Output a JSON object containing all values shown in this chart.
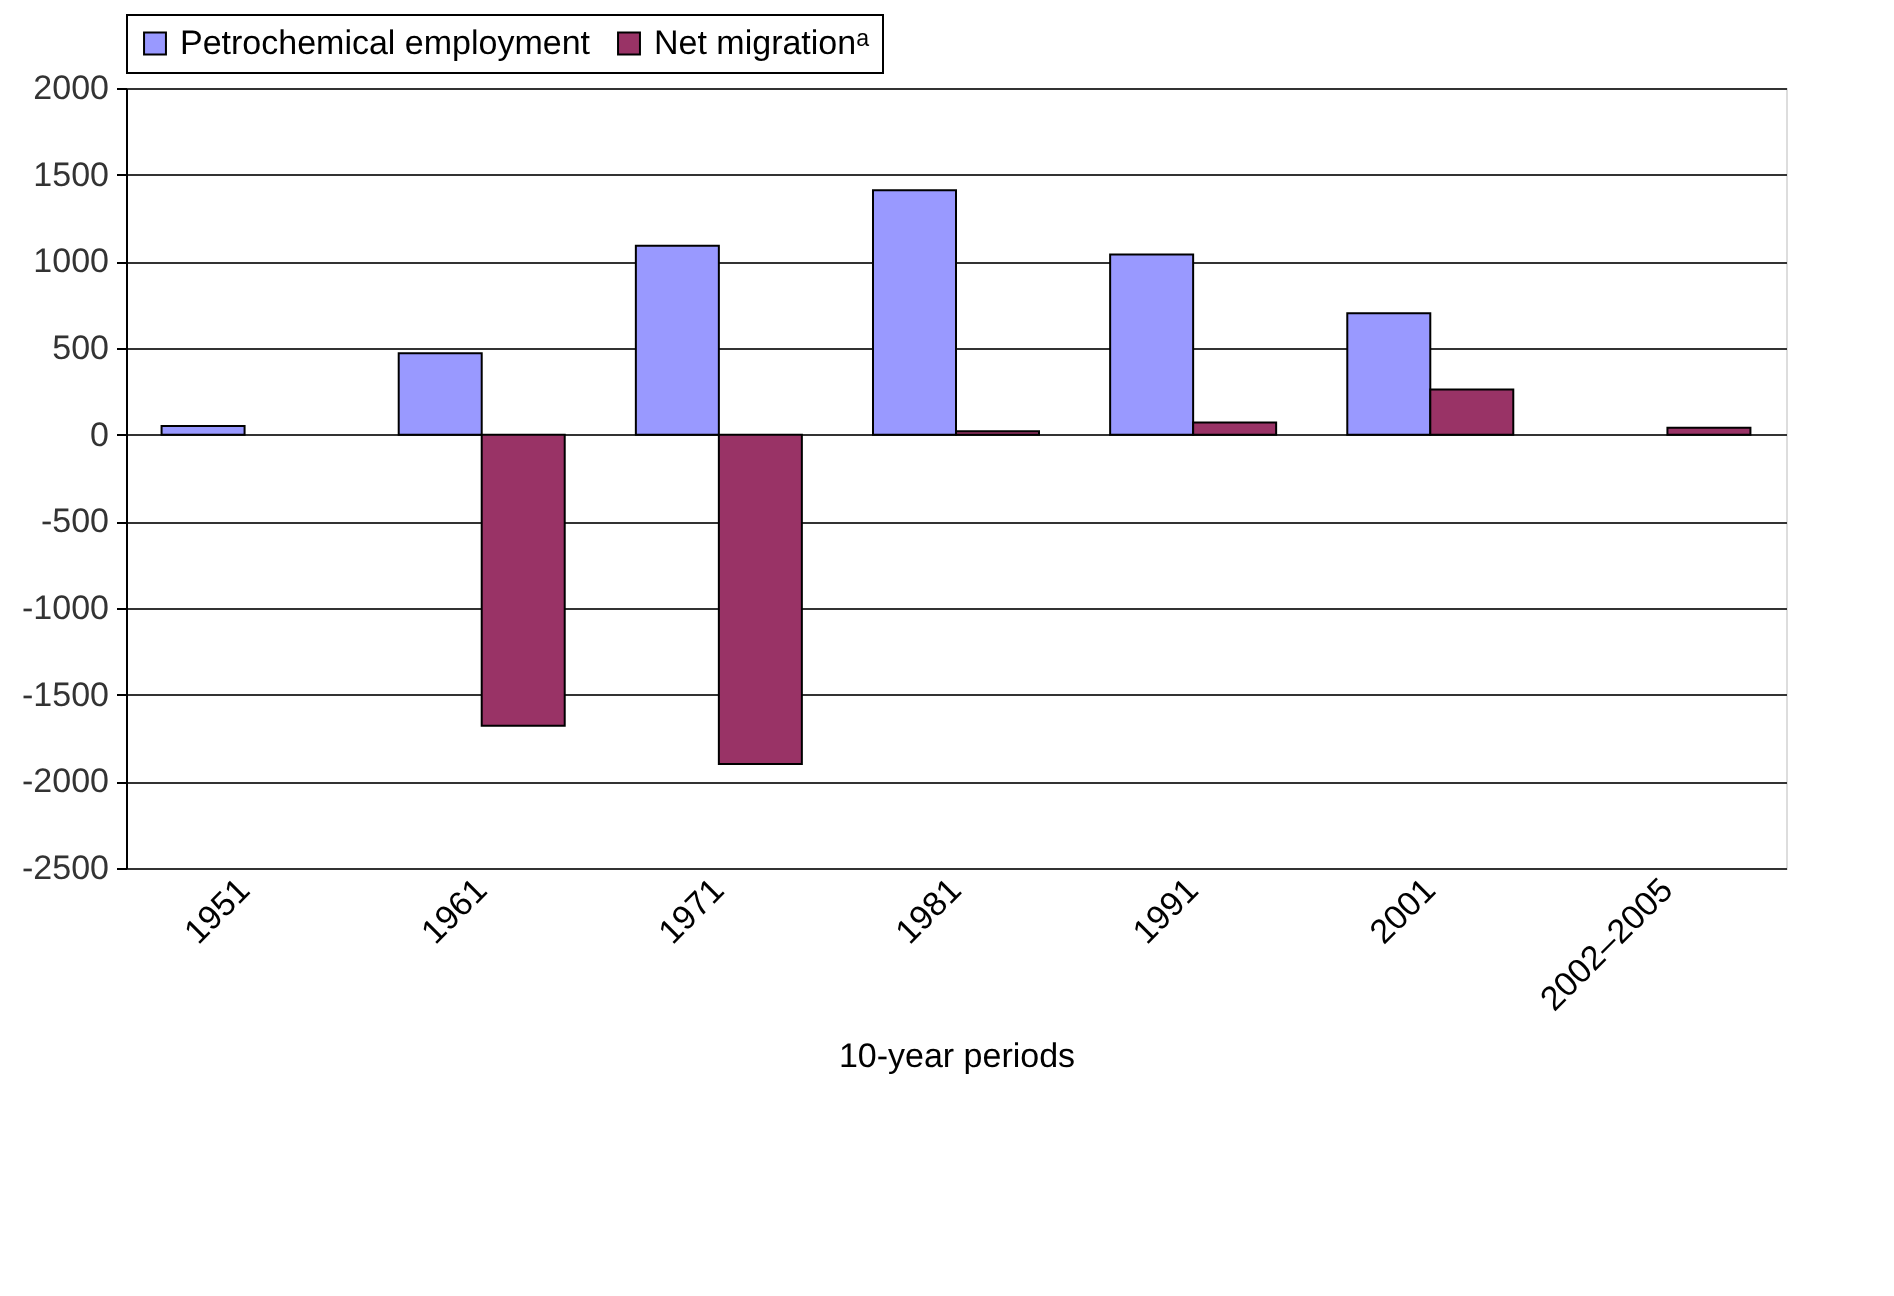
{
  "chart_data": {
    "type": "bar",
    "xlabel": "10-year periods",
    "categories": [
      "1951",
      "1961",
      "1971",
      "1981",
      "1991",
      "2001",
      "2002–2005"
    ],
    "series": [
      {
        "name": "Petrochemical employment",
        "color": "#9999ff",
        "values": [
          50,
          470,
          1090,
          1410,
          1040,
          700,
          null
        ]
      },
      {
        "name": "Net migrationᵃ",
        "color": "#993366",
        "values": [
          null,
          -1680,
          -1900,
          20,
          70,
          260,
          40
        ]
      }
    ],
    "ylim": [
      -2500,
      2000
    ],
    "yticks": [
      -2500,
      -2000,
      -1500,
      -1000,
      -500,
      0,
      500,
      1000,
      1500,
      2000
    ],
    "grid": "y",
    "legend": "top"
  }
}
